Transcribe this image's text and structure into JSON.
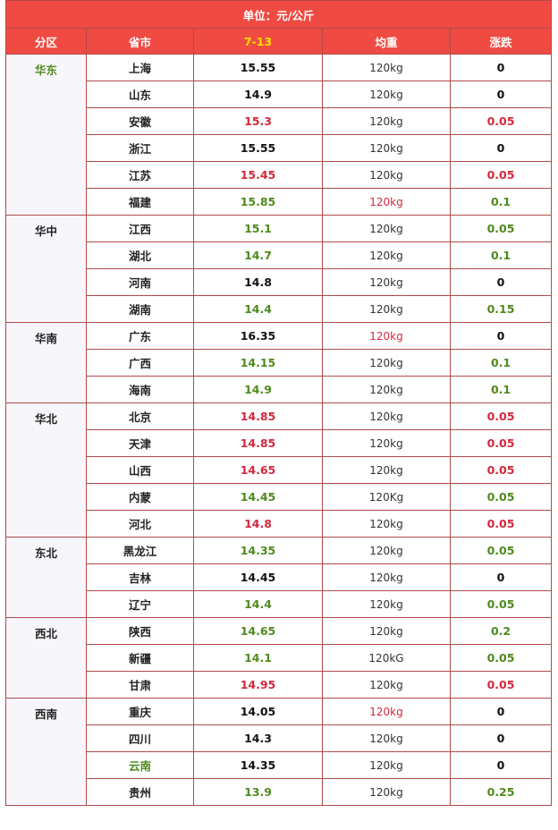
{
  "unit_label": "单位：元/公斤",
  "headers": {
    "region": "分区",
    "province": "省市",
    "date": "7-13",
    "weight": "均重",
    "change": "涨跌"
  },
  "colors": {
    "header_bg": "#ef4b43",
    "date_header": "#ffe100",
    "up_red": "#d4283c",
    "down_green": "#4e8a1d"
  },
  "regions": [
    {
      "name": "华东",
      "color": "green",
      "rows": [
        {
          "province": "上海",
          "pc": "",
          "price": "15.55",
          "priceColor": "black",
          "weight": "120kg",
          "wc": "",
          "change": "0",
          "cc": "black"
        },
        {
          "province": "山东",
          "pc": "",
          "price": "14.9",
          "priceColor": "black",
          "weight": "120kg",
          "wc": "",
          "change": "0",
          "cc": "black"
        },
        {
          "province": "安徽",
          "pc": "",
          "price": "15.3",
          "priceColor": "red",
          "weight": "120kg",
          "wc": "",
          "change": "0.05",
          "cc": "red"
        },
        {
          "province": "浙江",
          "pc": "",
          "price": "15.55",
          "priceColor": "black",
          "weight": "120kg",
          "wc": "",
          "change": "0",
          "cc": "black"
        },
        {
          "province": "江苏",
          "pc": "",
          "price": "15.45",
          "priceColor": "red",
          "weight": "120kg",
          "wc": "",
          "change": "0.05",
          "cc": "red"
        },
        {
          "province": "福建",
          "pc": "",
          "price": "15.85",
          "priceColor": "green",
          "weight": "120kg",
          "wc": "red",
          "change": "0.1",
          "cc": "green"
        }
      ]
    },
    {
      "name": "华中",
      "color": "",
      "rows": [
        {
          "province": "江西",
          "pc": "",
          "price": "15.1",
          "priceColor": "green",
          "weight": "120kg",
          "wc": "",
          "change": "0.05",
          "cc": "green"
        },
        {
          "province": "湖北",
          "pc": "",
          "price": "14.7",
          "priceColor": "green",
          "weight": "120kg",
          "wc": "",
          "change": "0.1",
          "cc": "green"
        },
        {
          "province": "河南",
          "pc": "",
          "price": "14.8",
          "priceColor": "black",
          "weight": "120kg",
          "wc": "",
          "change": "0",
          "cc": "black"
        },
        {
          "province": "湖南",
          "pc": "",
          "price": "14.4",
          "priceColor": "green",
          "weight": "120kg",
          "wc": "",
          "change": "0.15",
          "cc": "green"
        }
      ]
    },
    {
      "name": "华南",
      "color": "",
      "rows": [
        {
          "province": "广东",
          "pc": "",
          "price": "16.35",
          "priceColor": "black",
          "weight": "120kg",
          "wc": "red",
          "change": "0",
          "cc": "black"
        },
        {
          "province": "广西",
          "pc": "",
          "price": "14.15",
          "priceColor": "green",
          "weight": "120kg",
          "wc": "",
          "change": "0.1",
          "cc": "green"
        },
        {
          "province": "海南",
          "pc": "",
          "price": "14.9",
          "priceColor": "green",
          "weight": "120kg",
          "wc": "",
          "change": "0.1",
          "cc": "green"
        }
      ]
    },
    {
      "name": "华北",
      "color": "",
      "rows": [
        {
          "province": "北京",
          "pc": "",
          "price": "14.85",
          "priceColor": "red",
          "weight": "120kg",
          "wc": "",
          "change": "0.05",
          "cc": "red"
        },
        {
          "province": "天津",
          "pc": "",
          "price": "14.85",
          "priceColor": "red",
          "weight": "120kg",
          "wc": "",
          "change": "0.05",
          "cc": "red"
        },
        {
          "province": "山西",
          "pc": "",
          "price": "14.65",
          "priceColor": "red",
          "weight": "120kg",
          "wc": "",
          "change": "0.05",
          "cc": "red"
        },
        {
          "province": "内蒙",
          "pc": "",
          "price": "14.45",
          "priceColor": "green",
          "weight": "120Kg",
          "wc": "",
          "change": "0.05",
          "cc": "green"
        },
        {
          "province": "河北",
          "pc": "",
          "price": "14.8",
          "priceColor": "red",
          "weight": "120kg",
          "wc": "",
          "change": "0.05",
          "cc": "red"
        }
      ]
    },
    {
      "name": "东北",
      "color": "",
      "rows": [
        {
          "province": "黑龙江",
          "pc": "",
          "price": "14.35",
          "priceColor": "green",
          "weight": "120kg",
          "wc": "",
          "change": "0.05",
          "cc": "green"
        },
        {
          "province": "吉林",
          "pc": "",
          "price": "14.45",
          "priceColor": "black",
          "weight": "120kg",
          "wc": "",
          "change": "0",
          "cc": "black"
        },
        {
          "province": "辽宁",
          "pc": "",
          "price": "14.4",
          "priceColor": "green",
          "weight": "120kg",
          "wc": "",
          "change": "0.05",
          "cc": "green"
        }
      ]
    },
    {
      "name": "西北",
      "color": "",
      "rows": [
        {
          "province": "陕西",
          "pc": "",
          "price": "14.65",
          "priceColor": "green",
          "weight": "120kg",
          "wc": "",
          "change": "0.2",
          "cc": "green"
        },
        {
          "province": "新疆",
          "pc": "",
          "price": "14.1",
          "priceColor": "green",
          "weight": "120kG",
          "wc": "",
          "change": "0.05",
          "cc": "green"
        },
        {
          "province": "甘肃",
          "pc": "",
          "price": "14.95",
          "priceColor": "red",
          "weight": "120kg",
          "wc": "",
          "change": "0.05",
          "cc": "red"
        }
      ]
    },
    {
      "name": "西南",
      "color": "",
      "rows": [
        {
          "province": "重庆",
          "pc": "",
          "price": "14.05",
          "priceColor": "black",
          "weight": "120kg",
          "wc": "red",
          "change": "0",
          "cc": "black"
        },
        {
          "province": "四川",
          "pc": "",
          "price": "14.3",
          "priceColor": "black",
          "weight": "120kg",
          "wc": "",
          "change": "0",
          "cc": "black"
        },
        {
          "province": "云南",
          "pc": "green",
          "price": "14.35",
          "priceColor": "black",
          "weight": "120kg",
          "wc": "",
          "change": "0",
          "cc": "black"
        },
        {
          "province": "贵州",
          "pc": "",
          "price": "13.9",
          "priceColor": "green",
          "weight": "120kg",
          "wc": "",
          "change": "0.25",
          "cc": "green"
        }
      ]
    }
  ]
}
